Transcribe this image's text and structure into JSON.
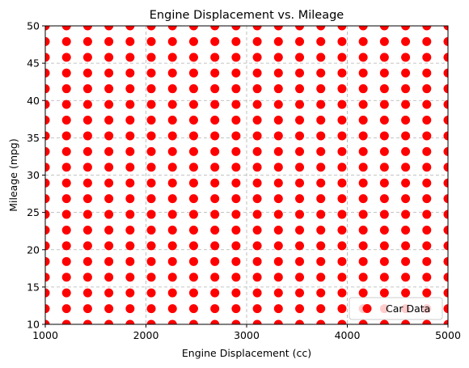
{
  "chart_data": {
    "type": "scatter",
    "title": "Engine Displacement vs. Mileage",
    "xlabel": "Engine Displacement (cc)",
    "ylabel": "Mileage (mpg)",
    "xlim": [
      1000,
      5000
    ],
    "ylim": [
      10,
      50
    ],
    "xticks": [
      1000,
      2000,
      3000,
      4000,
      5000
    ],
    "yticks": [
      10,
      15,
      20,
      25,
      30,
      35,
      40,
      45,
      50
    ],
    "grid": true,
    "grid_style": "dashed",
    "legend_position": "lower-right",
    "series": [
      {
        "name": "Car Data",
        "color": "#ff0000",
        "x_start": 1000,
        "x_step": 210.5,
        "x_count": 20,
        "y_start": 10,
        "y_step": 2.105,
        "y_count": 20,
        "description": "20 x 20 regular grid of points: x = 1000..5000, y = 10..50"
      }
    ]
  }
}
